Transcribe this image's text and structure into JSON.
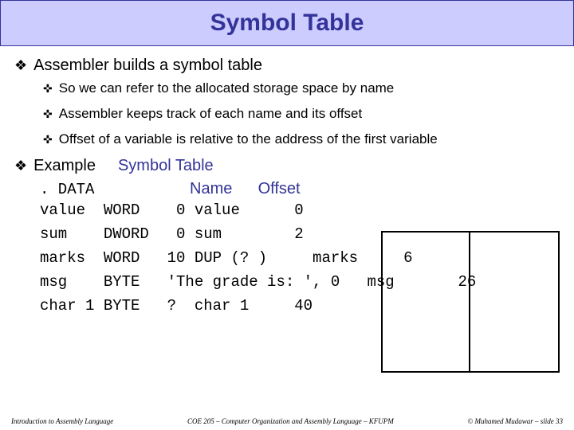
{
  "title": "Symbol Table",
  "main_bullet": "Assembler builds a symbol table",
  "sub_bullets": [
    "So we can refer to the allocated storage space by name",
    "Assembler keeps track of each name and its offset",
    "Offset of a variable is relative to the address of the first variable"
  ],
  "example_label": "Example",
  "symbol_table_label": "Symbol Table",
  "data_keyword": ". DATA",
  "name_header": "Name",
  "offset_header": "Offset",
  "data_lines": [
    "value  WORD    0 value      0",
    "sum    DWORD   0 sum        2",
    "marks  WORD   10 DUP (? )     marks     6",
    "msg    BYTE   'The grade is: ', 0   msg       26",
    "char 1 BYTE   ?  char 1     40"
  ],
  "footer_left": "Introduction to Assembly Language",
  "footer_mid": "COE 205 – Computer Organization and Assembly Language – KFUPM",
  "footer_right": "© Muhamed Mudawar – slide 33",
  "colors": {
    "title_bg": "#ccccff",
    "title_fg": "#333399",
    "accent": "#333399"
  }
}
